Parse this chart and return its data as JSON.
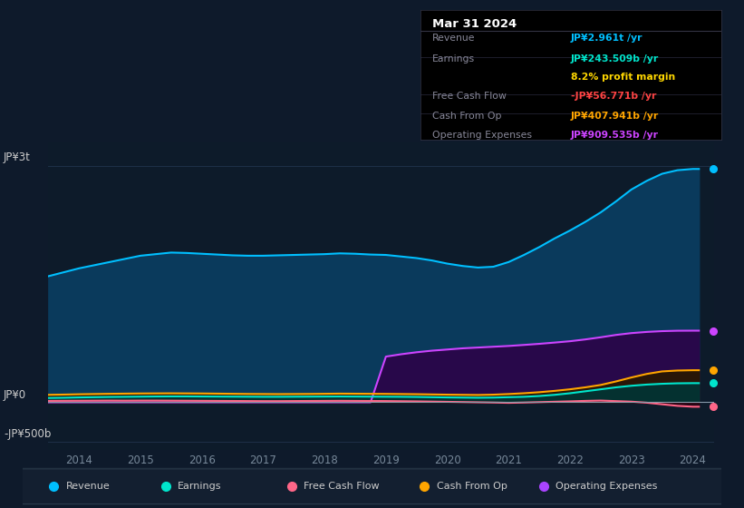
{
  "bg_color": "#0e1a2b",
  "plot_bg_color": "#0d1b2a",
  "legend_bg": "#131f30",
  "box_bg": "#000000",
  "title_box": {
    "date": "Mar 31 2024",
    "rows": [
      {
        "label": "Revenue",
        "value": "JP¥2.961t /yr",
        "value_color": "#00bfff"
      },
      {
        "label": "Earnings",
        "value": "JP¥243.509b /yr",
        "value_color": "#00e5cc"
      },
      {
        "label": "",
        "value": "8.2% profit margin",
        "value_color": "#ffd700"
      },
      {
        "label": "Free Cash Flow",
        "value": "-JP¥56.771b /yr",
        "value_color": "#ff4444"
      },
      {
        "label": "Cash From Op",
        "value": "JP¥407.941b /yr",
        "value_color": "#ffa500"
      },
      {
        "label": "Operating Expenses",
        "value": "JP¥909.535b /yr",
        "value_color": "#cc44ff"
      }
    ]
  },
  "ylabel_top": "JP¥3t",
  "ylabel_zero": "JP¥0",
  "ylabel_neg": "-JP¥500b",
  "x_ticks": [
    "2014",
    "2015",
    "2016",
    "2017",
    "2018",
    "2019",
    "2020",
    "2021",
    "2022",
    "2023",
    "2024"
  ],
  "x_tick_pos": [
    2014,
    2015,
    2016,
    2017,
    2018,
    2019,
    2020,
    2021,
    2022,
    2023,
    2024
  ],
  "legend": [
    {
      "label": "Revenue",
      "color": "#00bfff"
    },
    {
      "label": "Earnings",
      "color": "#00e5cc"
    },
    {
      "label": "Free Cash Flow",
      "color": "#ff6688"
    },
    {
      "label": "Cash From Op",
      "color": "#ffa500"
    },
    {
      "label": "Operating Expenses",
      "color": "#aa44ff"
    }
  ],
  "years": [
    2013.5,
    2013.75,
    2014.0,
    2014.25,
    2014.5,
    2014.75,
    2015.0,
    2015.25,
    2015.5,
    2015.75,
    2016.0,
    2016.25,
    2016.5,
    2016.75,
    2017.0,
    2017.25,
    2017.5,
    2017.75,
    2018.0,
    2018.25,
    2018.5,
    2018.75,
    2019.0,
    2019.25,
    2019.5,
    2019.75,
    2020.0,
    2020.25,
    2020.5,
    2020.75,
    2021.0,
    2021.25,
    2021.5,
    2021.75,
    2022.0,
    2022.25,
    2022.5,
    2022.75,
    2023.0,
    2023.25,
    2023.5,
    2023.75,
    2024.0,
    2024.1
  ],
  "revenue": [
    1600,
    1650,
    1700,
    1740,
    1780,
    1820,
    1860,
    1880,
    1900,
    1895,
    1885,
    1875,
    1865,
    1860,
    1860,
    1865,
    1870,
    1875,
    1880,
    1890,
    1885,
    1875,
    1870,
    1850,
    1830,
    1800,
    1760,
    1730,
    1710,
    1720,
    1780,
    1870,
    1970,
    2080,
    2180,
    2290,
    2410,
    2550,
    2700,
    2810,
    2900,
    2945,
    2961,
    2961
  ],
  "earnings": [
    55,
    58,
    62,
    65,
    68,
    70,
    72,
    74,
    75,
    75,
    74,
    73,
    72,
    71,
    70,
    70,
    71,
    72,
    73,
    74,
    73,
    72,
    71,
    70,
    68,
    65,
    62,
    60,
    58,
    60,
    65,
    70,
    80,
    95,
    115,
    140,
    165,
    190,
    210,
    225,
    235,
    241,
    243,
    243
  ],
  "free_cash_flow": [
    18,
    19,
    20,
    21,
    22,
    21,
    22,
    22,
    21,
    20,
    19,
    18,
    17,
    16,
    15,
    15,
    16,
    17,
    18,
    19,
    18,
    17,
    16,
    14,
    12,
    9,
    6,
    3,
    0,
    -3,
    -7,
    -3,
    2,
    7,
    12,
    18,
    22,
    15,
    8,
    -5,
    -25,
    -45,
    -56,
    -56
  ],
  "cash_from_op": [
    95,
    98,
    102,
    105,
    108,
    110,
    112,
    113,
    114,
    113,
    112,
    110,
    108,
    106,
    105,
    104,
    105,
    106,
    108,
    110,
    109,
    108,
    107,
    105,
    103,
    100,
    97,
    95,
    93,
    97,
    105,
    115,
    128,
    145,
    165,
    190,
    220,
    265,
    315,
    360,
    392,
    403,
    407,
    407
  ],
  "operating_expenses": [
    0,
    0,
    0,
    0,
    0,
    0,
    0,
    0,
    0,
    0,
    0,
    0,
    0,
    0,
    0,
    0,
    0,
    0,
    0,
    0,
    0,
    0,
    580,
    610,
    635,
    655,
    670,
    685,
    695,
    705,
    715,
    728,
    742,
    758,
    775,
    798,
    825,
    855,
    878,
    893,
    903,
    908,
    909,
    909
  ],
  "ylim": [
    -600,
    3300
  ],
  "xlim": [
    2013.5,
    2024.35
  ]
}
